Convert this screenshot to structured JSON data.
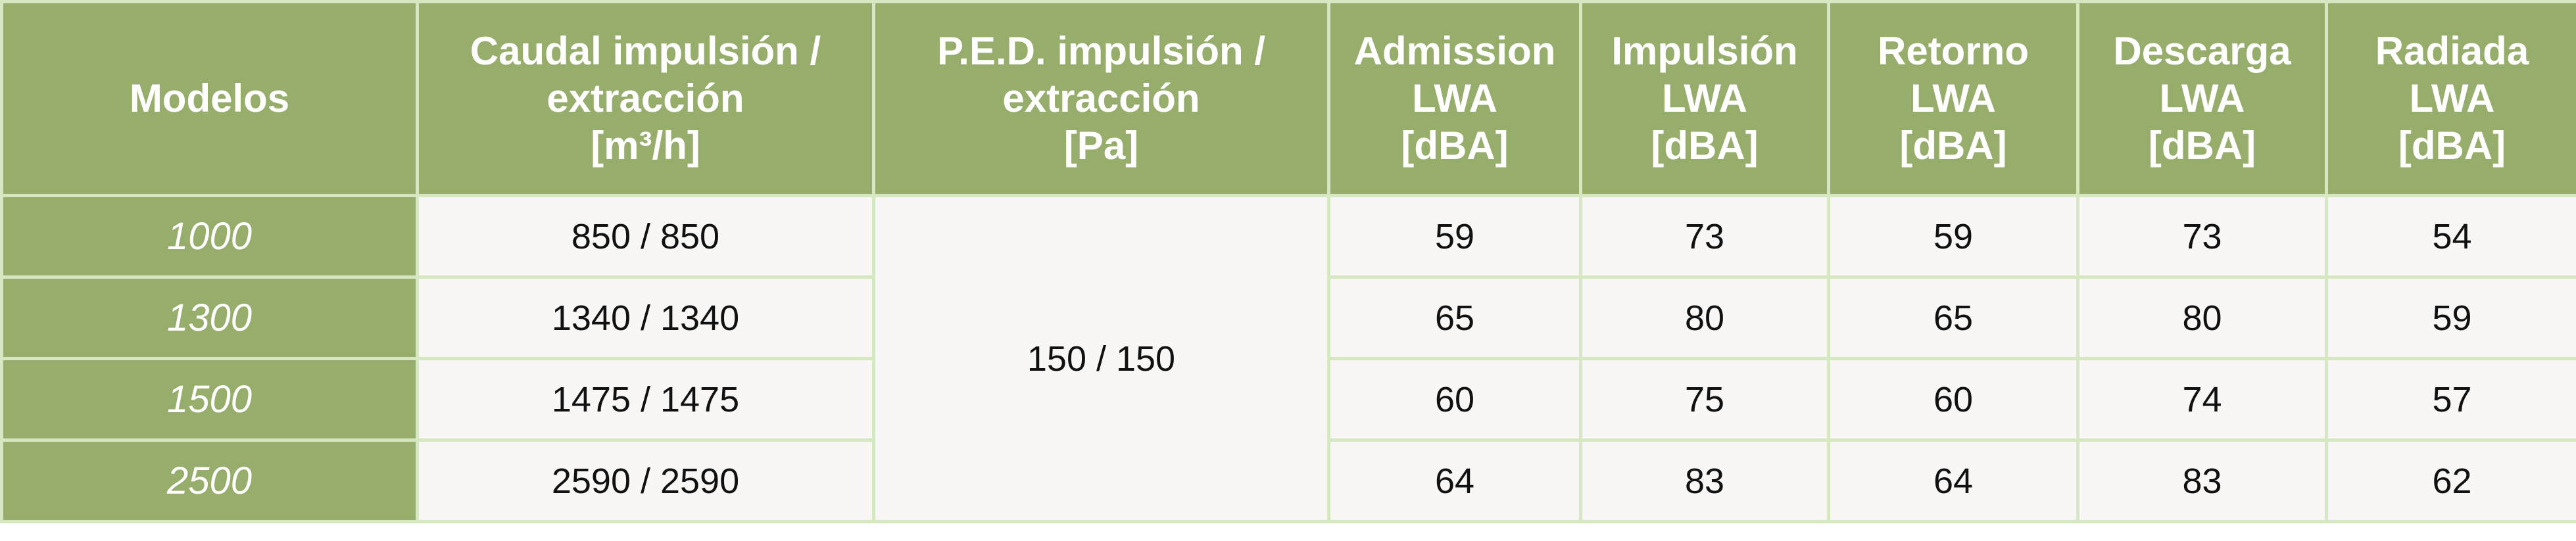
{
  "table": {
    "header": [
      [
        "Modelos"
      ],
      [
        "Caudal impulsión /",
        "extracción",
        "[m³/h]"
      ],
      [
        "P.E.D. impulsión /",
        "extracción",
        "[Pa]"
      ],
      [
        "Admission",
        "LWA",
        "[dBA]"
      ],
      [
        "Impulsión",
        "LWA",
        "[dBA]"
      ],
      [
        "Retorno",
        "LWA",
        "[dBA]"
      ],
      [
        "Descarga",
        "LWA",
        "[dBA]"
      ],
      [
        "Radiada",
        "LWA",
        "[dBA]"
      ]
    ],
    "ped": "150 / 150",
    "rows": [
      {
        "model": "1000",
        "flow": "850 / 850",
        "values": [
          "59",
          "73",
          "59",
          "73",
          "54"
        ]
      },
      {
        "model": "1300",
        "flow": "1340 / 1340",
        "values": [
          "65",
          "80",
          "65",
          "80",
          "59"
        ]
      },
      {
        "model": "1500",
        "flow": "1475 / 1475",
        "values": [
          "60",
          "75",
          "60",
          "74",
          "57"
        ]
      },
      {
        "model": "2500",
        "flow": "2590 / 2590",
        "values": [
          "64",
          "83",
          "64",
          "83",
          "62"
        ]
      }
    ]
  }
}
